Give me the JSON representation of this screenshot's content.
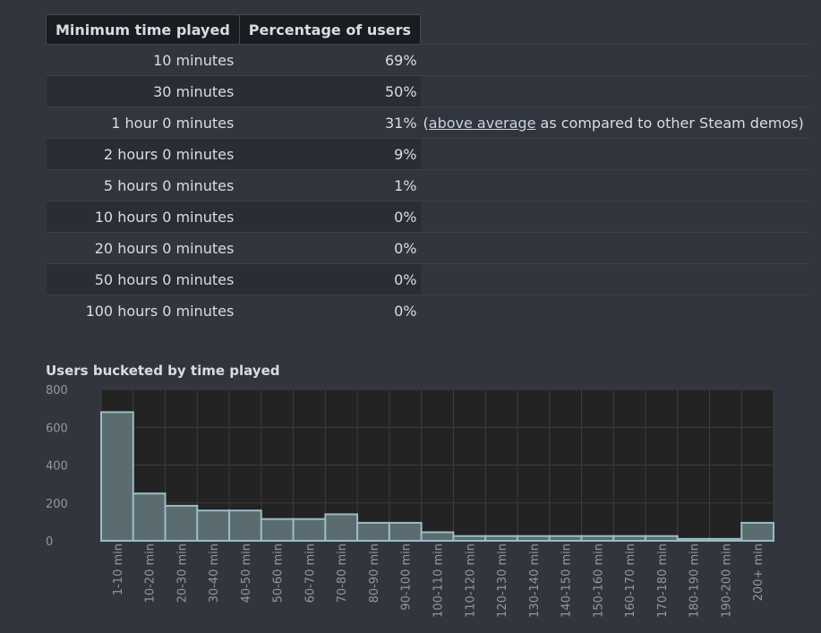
{
  "table": {
    "headers": [
      "Minimum time played",
      "Percentage of users"
    ],
    "rows": [
      {
        "time": "10 minutes",
        "pct": "69%"
      },
      {
        "time": "30 minutes",
        "pct": "50%"
      },
      {
        "time": "1 hour 0 minutes",
        "pct": "31%",
        "note_prefix": "(",
        "note_link": "above average",
        "note_suffix": " as compared to other Steam demos)"
      },
      {
        "time": "2 hours 0 minutes",
        "pct": "9%"
      },
      {
        "time": "5 hours 0 minutes",
        "pct": "1%"
      },
      {
        "time": "10 hours 0 minutes",
        "pct": "0%"
      },
      {
        "time": "20 hours 0 minutes",
        "pct": "0%"
      },
      {
        "time": "50 hours 0 minutes",
        "pct": "0%"
      },
      {
        "time": "100 hours 0 minutes",
        "pct": "0%"
      }
    ]
  },
  "chart_data": {
    "type": "bar",
    "title": "Users bucketed by time played",
    "categories": [
      "1-10 min",
      "10-20 min",
      "20-30 min",
      "30-40 min",
      "40-50 min",
      "50-60 min",
      "60-70 min",
      "70-80 min",
      "80-90 min",
      "90-100 min",
      "100-110 min",
      "110-120 min",
      "120-130 min",
      "130-140 min",
      "140-150 min",
      "150-160 min",
      "160-170 min",
      "170-180 min",
      "180-190 min",
      "190-200 min",
      "200+ min"
    ],
    "values": [
      680,
      250,
      185,
      160,
      160,
      115,
      115,
      140,
      95,
      95,
      45,
      25,
      25,
      25,
      25,
      25,
      25,
      25,
      10,
      10,
      95
    ],
    "ylim": [
      0,
      800
    ],
    "yticks": [
      0,
      200,
      400,
      600,
      800
    ],
    "grid": true,
    "colors": {
      "bar_fill": "#5a6c70",
      "bar_stroke": "#9bbcc5",
      "plot_bg": "#232323",
      "grid": "#3d3d3d",
      "tick_text": "#8f98a0"
    }
  }
}
